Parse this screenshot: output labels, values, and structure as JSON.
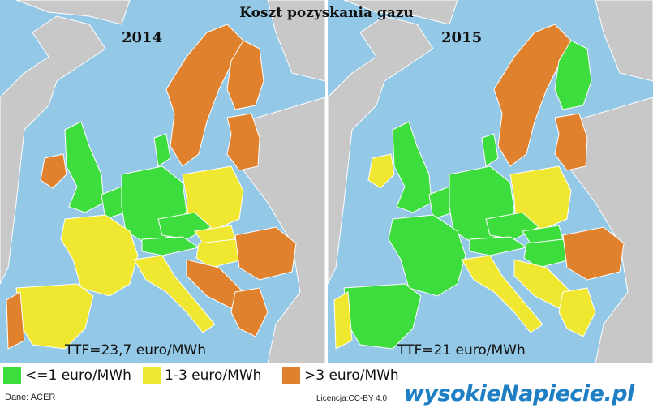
{
  "title": "Koszt  pozyskania gazu",
  "colors": {
    "sea": "#93c8e6",
    "land_nodata": "#c8c8c8",
    "low": "#3ddd3d",
    "mid": "#f0e830",
    "high": "#e0812e"
  },
  "maps": [
    {
      "year": "2014",
      "ttf": "TTF=23,7 euro/MWh",
      "regions": {
        "britain": "low",
        "ireland": "high",
        "benelux": "low",
        "germany": "low",
        "czechia": "low",
        "austria": "low",
        "france": "mid",
        "iberia": "mid",
        "portugal": "high",
        "italy": "mid",
        "poland": "mid",
        "slovakia": "mid",
        "hungary": "mid",
        "romania": "high",
        "greece": "high",
        "balkans_w": "high",
        "scandinavia": "high",
        "finland": "high",
        "baltics": "high",
        "denmark": "low"
      }
    },
    {
      "year": "2015",
      "ttf": "TTF=21 euro/MWh",
      "regions": {
        "britain": "low",
        "ireland": "mid",
        "benelux": "low",
        "germany": "low",
        "czechia": "low",
        "austria": "low",
        "france": "low",
        "iberia": "low",
        "portugal": "mid",
        "italy": "mid",
        "poland": "mid",
        "slovakia": "low",
        "hungary": "low",
        "romania": "high",
        "greece": "mid",
        "balkans_w": "mid",
        "scandinavia": "high",
        "finland": "low",
        "baltics": "high",
        "denmark": "low"
      }
    }
  ],
  "legend": [
    {
      "key": "low",
      "label": "<=1 euro/MWh"
    },
    {
      "key": "mid",
      "label": "1-3 euro/MWh"
    },
    {
      "key": "high",
      "label": ">3 euro/MWh"
    }
  ],
  "source": "Dane: ACER",
  "license": "Licencja:CC-BY 4.0",
  "logo": "wysokieNapiecie.pl"
}
